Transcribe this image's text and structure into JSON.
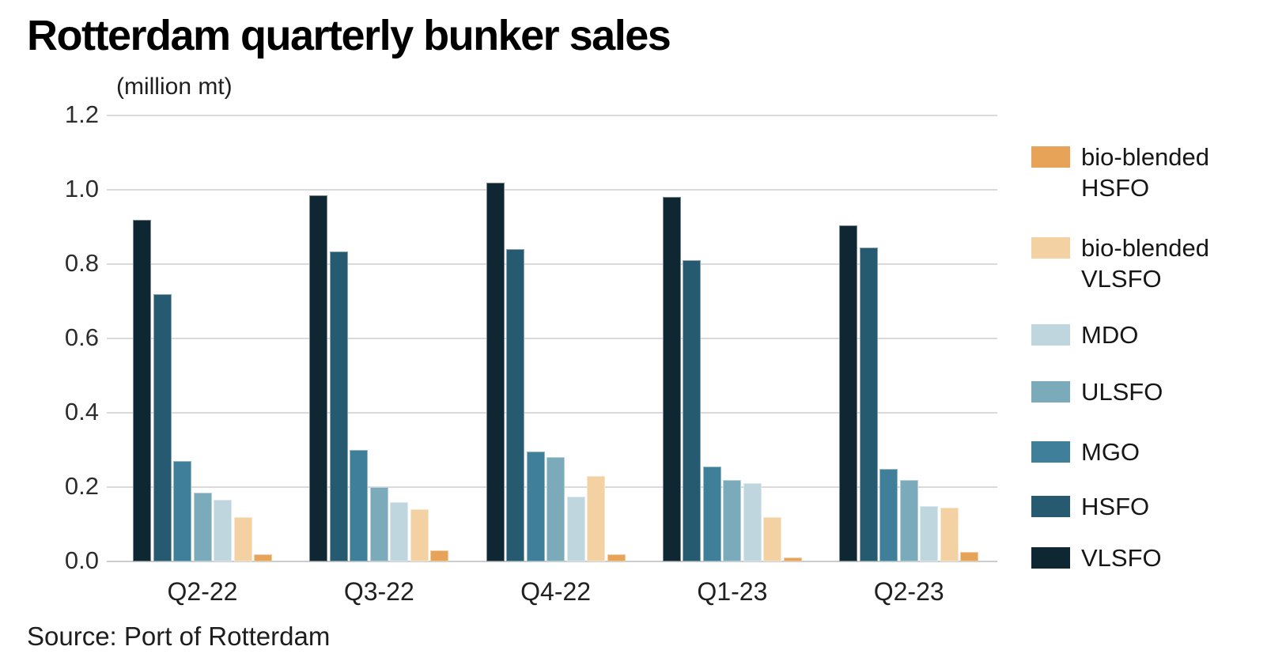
{
  "title": "Rotterdam quarterly bunker sales",
  "subtitle": "(million mt)",
  "source": "Source: Port of Rotterdam",
  "chart_data": {
    "type": "bar",
    "title": "Rotterdam quarterly bunker sales",
    "ylabel": "(million mt)",
    "xlabel": "",
    "categories": [
      "Q2-22",
      "Q3-22",
      "Q4-22",
      "Q1-23",
      "Q2-23"
    ],
    "series": [
      {
        "name": "VLSFO",
        "color": "#0f2733",
        "values": [
          0.92,
          0.985,
          1.02,
          0.98,
          0.905
        ]
      },
      {
        "name": "HSFO",
        "color": "#255a70",
        "values": [
          0.72,
          0.835,
          0.84,
          0.81,
          0.845
        ]
      },
      {
        "name": "MGO",
        "color": "#3f7f99",
        "values": [
          0.27,
          0.3,
          0.295,
          0.255,
          0.25
        ]
      },
      {
        "name": "ULSFO",
        "color": "#7babba",
        "values": [
          0.185,
          0.2,
          0.28,
          0.22,
          0.22
        ]
      },
      {
        "name": "MDO",
        "color": "#c0d6de",
        "values": [
          0.165,
          0.16,
          0.175,
          0.21,
          0.15
        ]
      },
      {
        "name": "bio-blended VLSFO",
        "color": "#f3d1a2",
        "values": [
          0.12,
          0.14,
          0.23,
          0.12,
          0.145
        ]
      },
      {
        "name": "bio-blended HSFO",
        "color": "#e7a358",
        "values": [
          0.02,
          0.03,
          0.02,
          0.01,
          0.025
        ]
      }
    ],
    "ylim": [
      0,
      1.2
    ],
    "yticks": [
      0.0,
      0.2,
      0.4,
      0.6,
      0.8,
      1.0,
      1.2
    ],
    "grid": true,
    "legend_position": "right",
    "legend": [
      {
        "id": "bio-blended-hsfo",
        "lines": [
          "bio-blended",
          "HSFO"
        ],
        "color": "#e7a358"
      },
      {
        "id": "bio-blended-vlsfo",
        "lines": [
          "bio-blended",
          "VLSFO"
        ],
        "color": "#f3d1a2"
      },
      {
        "id": "mdo",
        "lines": [
          "MDO"
        ],
        "color": "#c0d6de"
      },
      {
        "id": "ulsfo",
        "lines": [
          "ULSFO"
        ],
        "color": "#7babba"
      },
      {
        "id": "mgo",
        "lines": [
          "MGO"
        ],
        "color": "#3f7f99"
      },
      {
        "id": "hsfo",
        "lines": [
          "HSFO"
        ],
        "color": "#255a70"
      },
      {
        "id": "vlsfo",
        "lines": [
          "VLSFO"
        ],
        "color": "#0f2733"
      }
    ]
  }
}
